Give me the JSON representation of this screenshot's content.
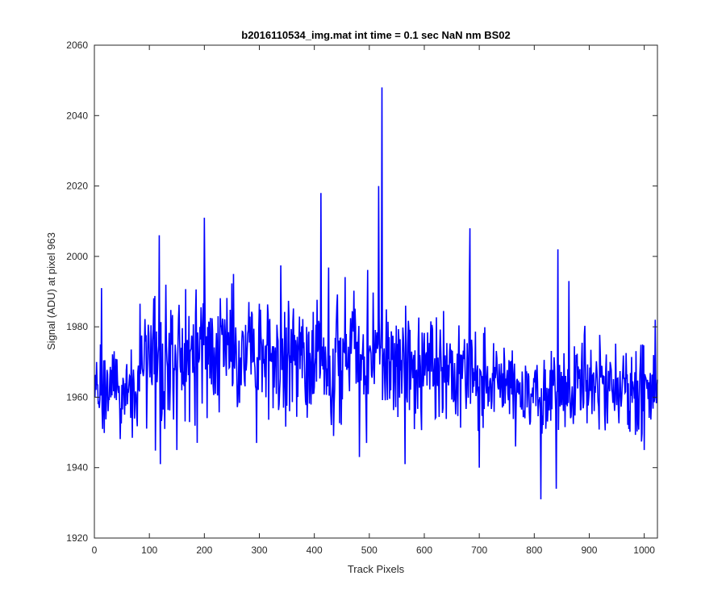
{
  "chart_data": {
    "type": "line",
    "title": "b2016110534_img.mat int time = 0.1 sec  NaN nm BS02",
    "xlabel": "Track Pixels",
    "ylabel": "Signal (ADU) at pixel 963",
    "xlim": [
      0,
      1024
    ],
    "ylim": [
      1920,
      2060
    ],
    "xticks": [
      0,
      100,
      200,
      300,
      400,
      500,
      600,
      700,
      800,
      900,
      1000
    ],
    "yticks": [
      1920,
      1940,
      1960,
      1980,
      2000,
      2020,
      2040,
      2060
    ],
    "xtick_labels": [
      "0",
      "100",
      "200",
      "300",
      "400",
      "500",
      "600",
      "700",
      "800",
      "900",
      "1000"
    ],
    "ytick_labels": [
      "1920",
      "1940",
      "1960",
      "1980",
      "2000",
      "2020",
      "2040",
      "2060"
    ],
    "grid": false,
    "legend": "none",
    "series": [
      {
        "color": "#0000ff",
        "x_range": [
          1,
          1024
        ],
        "baseline_by_x": [
          [
            0,
            1963
          ],
          [
            80,
            1962
          ],
          [
            90,
            1970
          ],
          [
            250,
            1972
          ],
          [
            520,
            1972
          ],
          [
            600,
            1970
          ],
          [
            700,
            1965
          ],
          [
            800,
            1962
          ],
          [
            1024,
            1962
          ]
        ],
        "noise_std_by_x": [
          [
            0,
            6
          ],
          [
            80,
            6
          ],
          [
            90,
            9
          ],
          [
            600,
            9
          ],
          [
            700,
            7
          ],
          [
            1024,
            6
          ]
        ],
        "notable_points": [
          [
            1,
            1960
          ],
          [
            4,
            1970
          ],
          [
            7,
            1958
          ],
          [
            11,
            1975
          ],
          [
            13,
            1991
          ],
          [
            15,
            1951
          ],
          [
            120,
            1941
          ],
          [
            118,
            2006
          ],
          [
            150,
            1945
          ],
          [
            200,
            2011
          ],
          [
            253,
            1995
          ],
          [
            295,
            1947
          ],
          [
            412,
            2018
          ],
          [
            435,
            1949
          ],
          [
            495,
            1947
          ],
          [
            517,
            2020
          ],
          [
            523,
            2048
          ],
          [
            565,
            1941
          ],
          [
            620,
            1954
          ],
          [
            683,
            2008
          ],
          [
            700,
            1940
          ],
          [
            766,
            1946
          ],
          [
            812,
            1931
          ],
          [
            840,
            1934
          ],
          [
            843,
            2002
          ],
          [
            863,
            1993
          ],
          [
            1000,
            1945
          ],
          [
            1020,
            1982
          ],
          [
            1024,
            1965
          ]
        ]
      }
    ]
  }
}
